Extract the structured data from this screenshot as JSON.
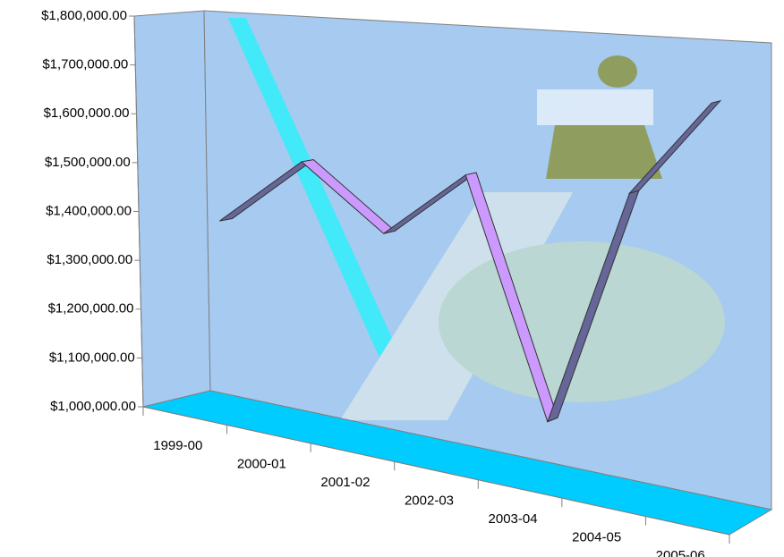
{
  "chart_data": {
    "type": "line3d",
    "categories": [
      "1999-00",
      "2000-01",
      "2001-02",
      "2002-03",
      "2003-04",
      "2004-05",
      "2005-06"
    ],
    "series": [
      {
        "values": [
          1380000,
          1520000,
          1400000,
          1530000,
          1100000,
          1530000,
          1700000
        ],
        "color": "#cc99ff"
      }
    ],
    "ylim": [
      1000000,
      1800000
    ],
    "yticks": [
      {
        "value": 1000000,
        "label": "$1,000,000.00"
      },
      {
        "value": 1100000,
        "label": "$1,100,000.00"
      },
      {
        "value": 1200000,
        "label": "$1,200,000.00"
      },
      {
        "value": 1300000,
        "label": "$1,300,000.00"
      },
      {
        "value": 1400000,
        "label": "$1,400,000.00"
      },
      {
        "value": 1500000,
        "label": "$1,500,000.00"
      },
      {
        "value": 1600000,
        "label": "$1,600,000.00"
      },
      {
        "value": 1700000,
        "label": "$1,700,000.00"
      },
      {
        "value": 1800000,
        "label": "$1,800,000.00"
      }
    ]
  }
}
